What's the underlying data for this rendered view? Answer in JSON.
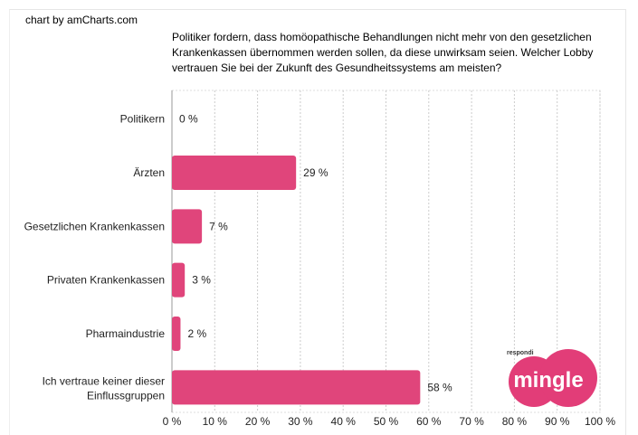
{
  "credit": "chart by amCharts.com",
  "logo": {
    "small_text": "respondi",
    "text": "mingle",
    "color": "#e23d78"
  },
  "chart_data": {
    "type": "bar",
    "orientation": "horizontal",
    "title": "Politiker fordern, dass homöopathische Behandlungen nicht mehr von den gesetzlichen Krankenkassen übernommen werden sollen, da diese unwirksam seien. Welcher Lobby vertrauen Sie bei der Zukunft des Gesundheitssystems am meisten?",
    "categories": [
      "Politikern",
      "Ärzten",
      "Gesetzlichen Krankenkassen",
      "Privaten Krankenkassen",
      "Pharmaindustrie",
      "Ich vertraue keiner dieser Einflussgruppen"
    ],
    "values": [
      0,
      29,
      7,
      3,
      2,
      58
    ],
    "data_labels": [
      "0 %",
      "29 %",
      "7 %",
      "3 %",
      "2 %",
      "58 %"
    ],
    "xlim": [
      0,
      100
    ],
    "x_ticks": [
      "0 %",
      "10 %",
      "20 %",
      "30 %",
      "40 %",
      "50 %",
      "60 %",
      "70 %",
      "80 %",
      "90 %",
      "100 %"
    ],
    "grid": true,
    "bar_color": "#e0457b"
  }
}
